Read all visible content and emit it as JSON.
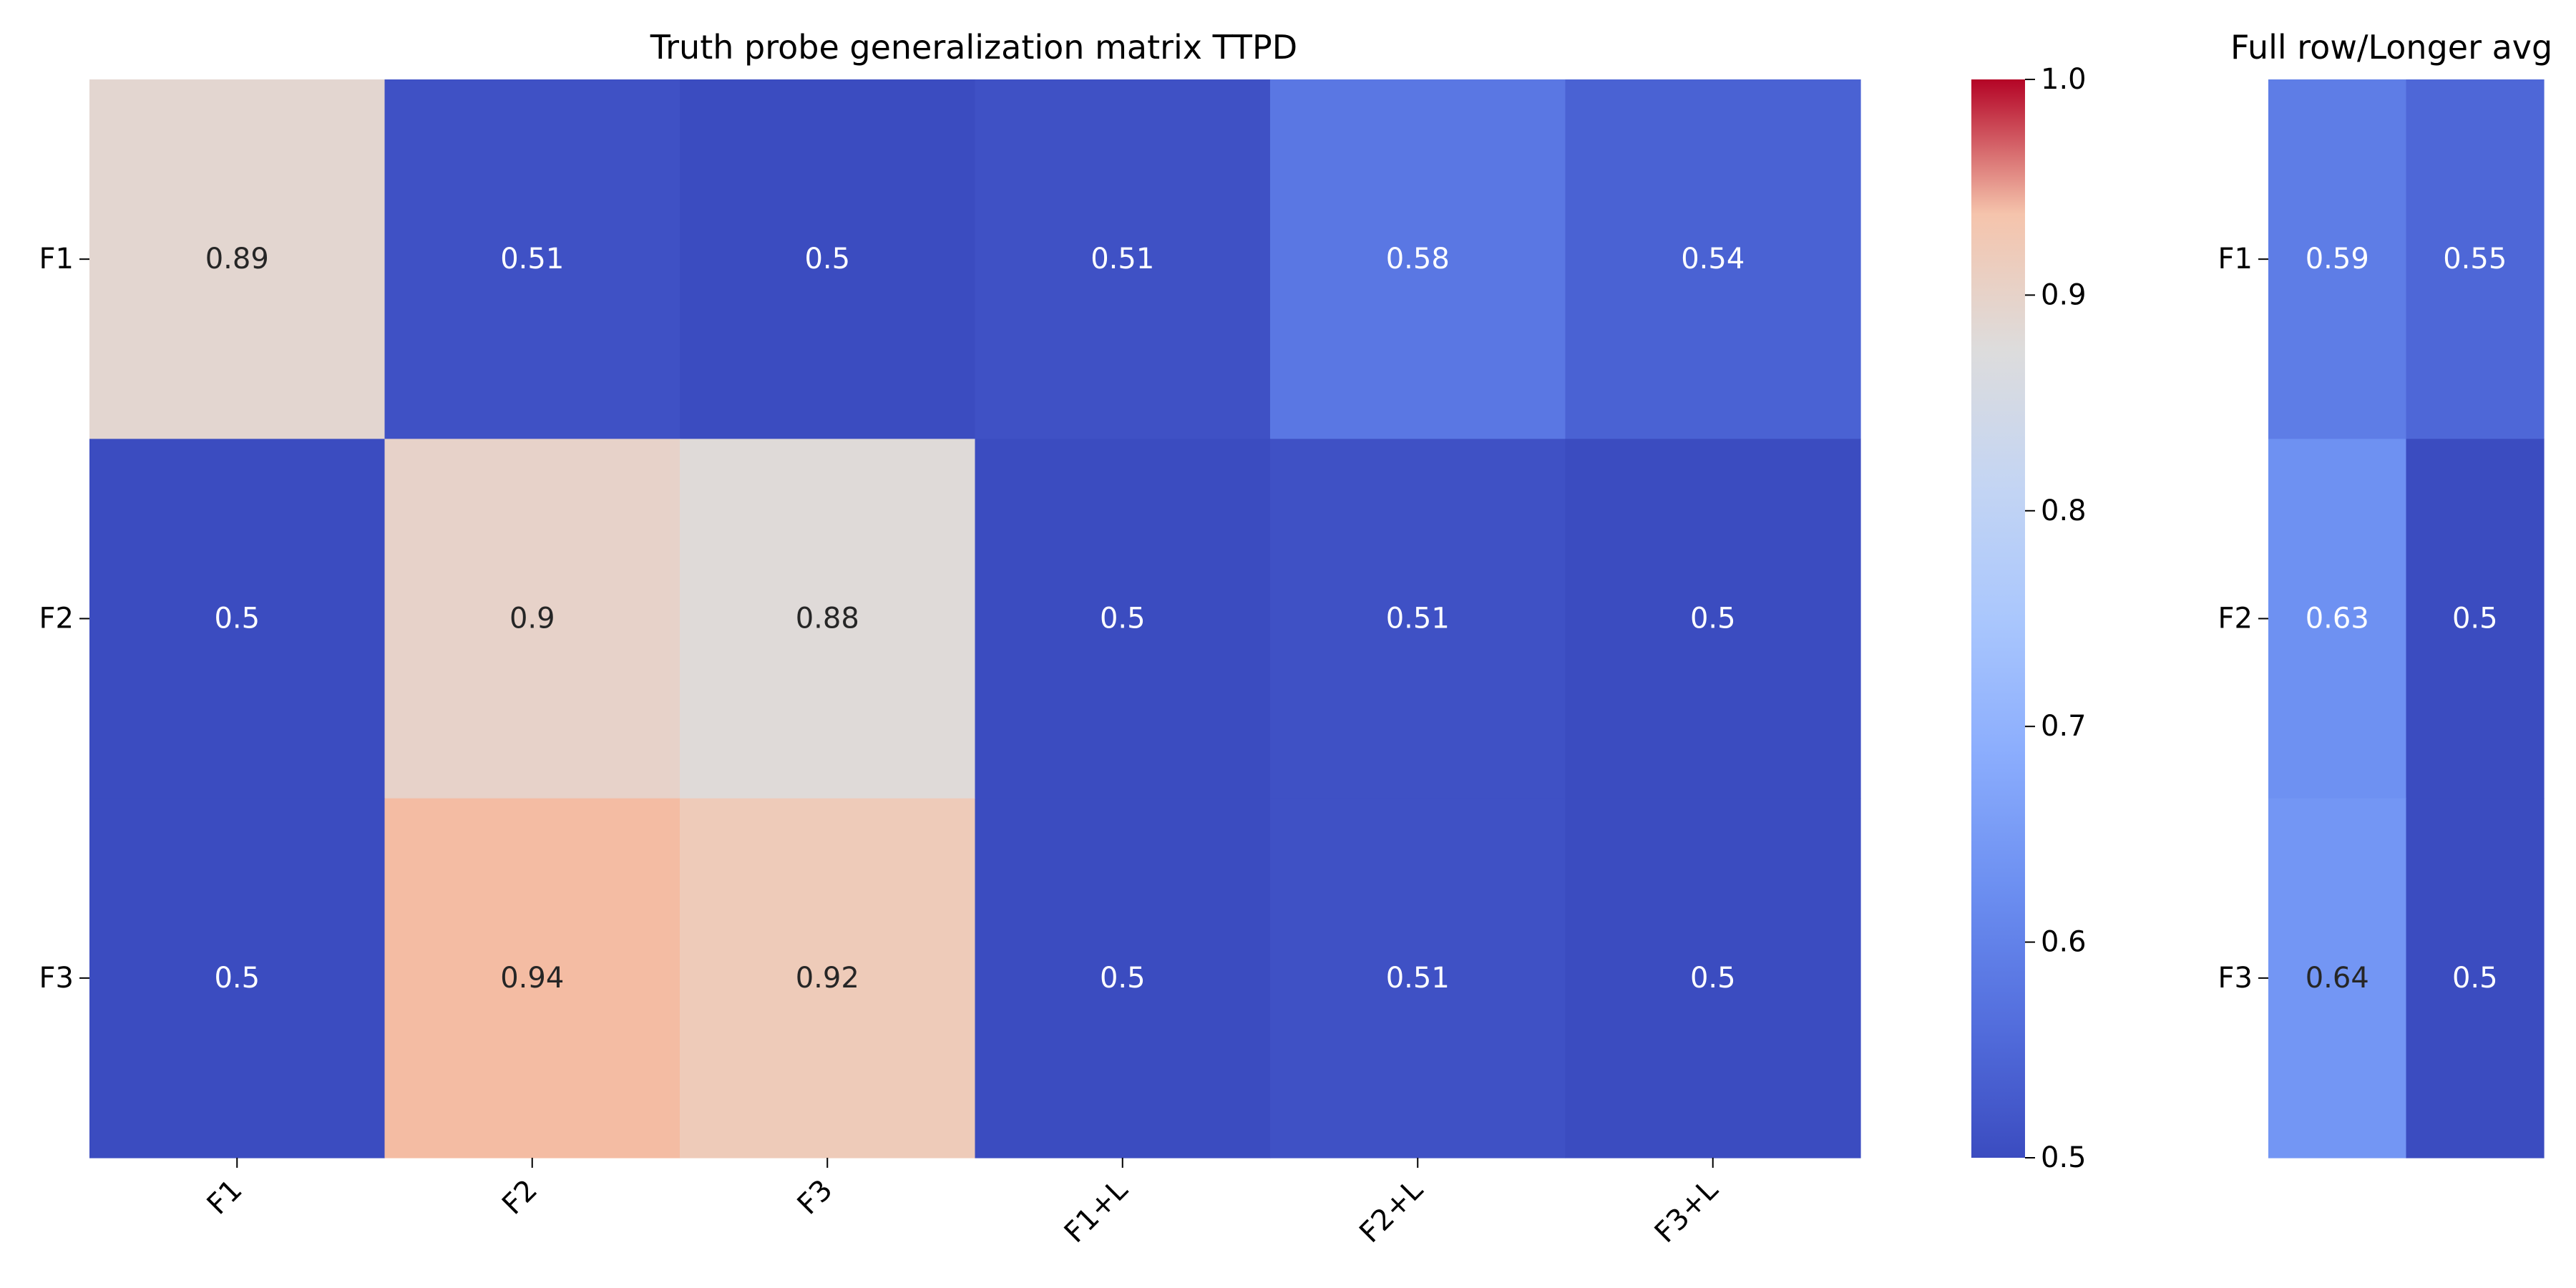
{
  "chart_data": [
    {
      "type": "heatmap",
      "title": "Truth probe generalization matrix TTPD",
      "rows": [
        "F1",
        "F2",
        "F3"
      ],
      "columns": [
        "F1",
        "F2",
        "F3",
        "F1+L",
        "F2+L",
        "F3+L"
      ],
      "values": [
        [
          0.89,
          0.51,
          0.5,
          0.51,
          0.58,
          0.54
        ],
        [
          0.5,
          0.9,
          0.88,
          0.5,
          0.51,
          0.5
        ],
        [
          0.5,
          0.94,
          0.92,
          0.5,
          0.51,
          0.5
        ]
      ],
      "labels": [
        [
          "0.89",
          "0.51",
          "0.5",
          "0.51",
          "0.58",
          "0.54"
        ],
        [
          "0.5",
          "0.9",
          "0.88",
          "0.5",
          "0.51",
          "0.5"
        ],
        [
          "0.5",
          "0.94",
          "0.92",
          "0.5",
          "0.51",
          "0.5"
        ]
      ],
      "colorscale": "coolwarm",
      "vmin": 0.5,
      "vmax": 1.0,
      "colorbar_ticks": [
        "0.5",
        "0.6",
        "0.7",
        "0.8",
        "0.9",
        "1.0"
      ]
    },
    {
      "type": "heatmap",
      "title": "Full row/Longer avg",
      "rows": [
        "F1",
        "F2",
        "F3"
      ],
      "columns": [
        "",
        ""
      ],
      "values": [
        [
          0.59,
          0.55
        ],
        [
          0.63,
          0.5
        ],
        [
          0.64,
          0.5
        ]
      ],
      "labels": [
        [
          "0.59",
          "0.55"
        ],
        [
          "0.63",
          "0.5"
        ],
        [
          "0.64",
          "0.5"
        ]
      ],
      "colorscale": "coolwarm",
      "vmin": 0.5,
      "vmax": 1.0
    }
  ]
}
